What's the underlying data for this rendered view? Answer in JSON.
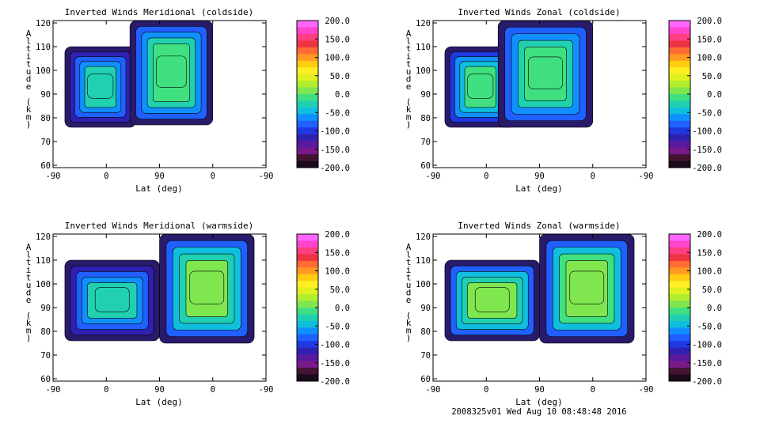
{
  "footer": "2008325v01 Wed Aug 10 08:48:48 2016",
  "colorbar": {
    "ticks": [
      "200.0",
      "150.0",
      "100.0",
      "50.0",
      "0.0",
      "-50.0",
      "-100.0",
      "-150.0",
      "-200.0"
    ],
    "values": [
      200,
      150,
      100,
      50,
      0,
      -50,
      -100,
      -150,
      -200
    ],
    "colors": [
      "#ff66ff",
      "#ff44cc",
      "#ff3f7f",
      "#ee3344",
      "#ff6a35",
      "#ff9922",
      "#ffcc11",
      "#ffee22",
      "#e0f020",
      "#b0ee30",
      "#7fe650",
      "#40e080",
      "#20d0b0",
      "#10bede",
      "#1090ff",
      "#2060ff",
      "#2038e0",
      "#3020b0",
      "#5a1aa0",
      "#7a1a8a",
      "#441433",
      "#1a0a1a"
    ]
  },
  "chart_data": [
    {
      "type": "heatmap",
      "title": "Inverted Winds Meridional (coldside)",
      "xlabel": "Lat (deg)",
      "ylabel": "Altitude (km)",
      "xticks": [
        "-90",
        "0",
        "90",
        "0",
        "-90"
      ],
      "yticks": [
        "60",
        "70",
        "80",
        "90",
        "100",
        "110",
        "120"
      ],
      "ylim": [
        59,
        121
      ],
      "value_range": [
        -200,
        200
      ],
      "data_coverage": [
        {
          "region": "left",
          "x": [
            -70,
            50
          ],
          "y": [
            76,
            110
          ],
          "typical_value": -30
        },
        {
          "region": "right",
          "x": [
            40,
            180
          ],
          "y": [
            77,
            121
          ],
          "typical_value": 0
        }
      ]
    },
    {
      "type": "heatmap",
      "title": "Inverted Winds Zonal (coldside)",
      "xlabel": "Lat (deg)",
      "ylabel": "Altitude (km)",
      "xticks": [
        "-90",
        "0",
        "90",
        "0",
        "-90"
      ],
      "yticks": [
        "60",
        "70",
        "80",
        "90",
        "100",
        "110",
        "120"
      ],
      "ylim": [
        59,
        121
      ],
      "value_range": [
        -200,
        200
      ],
      "data_coverage": [
        {
          "region": "left",
          "x": [
            -70,
            50
          ],
          "y": [
            76,
            110
          ],
          "typical_value": -10
        },
        {
          "region": "right",
          "x": [
            20,
            180
          ],
          "y": [
            76,
            121
          ],
          "typical_value": 0
        }
      ]
    },
    {
      "type": "heatmap",
      "title": "Inverted Winds Meridional (warmside)",
      "xlabel": "Lat (deg)",
      "ylabel": "Altitude (km)",
      "xticks": [
        "-90",
        "0",
        "90",
        "0",
        "-90"
      ],
      "yticks": [
        "60",
        "70",
        "80",
        "90",
        "100",
        "110",
        "120"
      ],
      "ylim": [
        59,
        121
      ],
      "value_range": [
        -200,
        200
      ],
      "data_coverage": [
        {
          "region": "left",
          "x": [
            -70,
            90
          ],
          "y": [
            76,
            110
          ],
          "typical_value": -30
        },
        {
          "region": "right",
          "x": [
            90,
            250
          ],
          "y": [
            75,
            121
          ],
          "typical_value": 10
        }
      ]
    },
    {
      "type": "heatmap",
      "title": "Inverted Winds Zonal (warmside)",
      "xlabel": "Lat (deg)",
      "ylabel": "Altitude (km)",
      "xticks": [
        "-90",
        "0",
        "90",
        "0",
        "-90"
      ],
      "yticks": [
        "60",
        "70",
        "80",
        "90",
        "100",
        "110",
        "120"
      ],
      "ylim": [
        59,
        121
      ],
      "value_range": [
        -200,
        200
      ],
      "data_coverage": [
        {
          "region": "left",
          "x": [
            -70,
            90
          ],
          "y": [
            76,
            110
          ],
          "typical_value": 10
        },
        {
          "region": "right",
          "x": [
            90,
            250
          ],
          "y": [
            75,
            121
          ],
          "typical_value": 15
        }
      ]
    }
  ]
}
